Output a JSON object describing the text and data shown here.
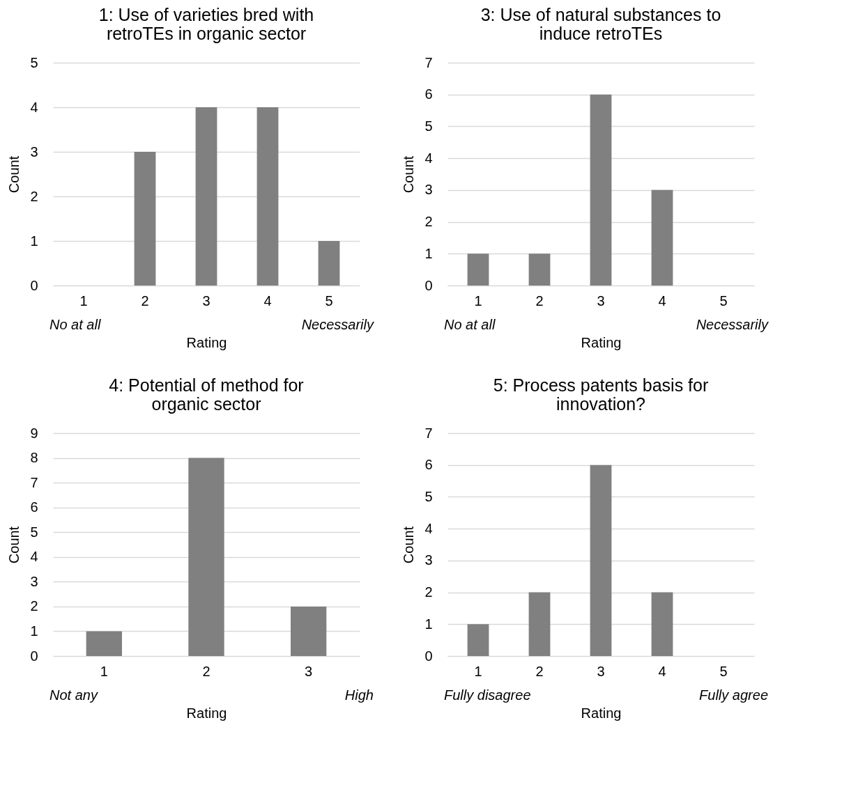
{
  "chart_data": [
    {
      "type": "bar",
      "title": "1: Use of varieties bred with\nretroTEs in organic sector",
      "xlabel": "Rating",
      "ylabel": "Count",
      "categories": [
        "1",
        "2",
        "3",
        "4",
        "5"
      ],
      "values": [
        0,
        3,
        4,
        4,
        1
      ],
      "color": "#808080",
      "ylim": [
        0,
        5
      ],
      "yticks": [
        0,
        1,
        2,
        3,
        4,
        5
      ],
      "grid": "y",
      "annotations": [
        "No at all",
        "Necessarily"
      ]
    },
    {
      "type": "bar",
      "title": "3: Use of natural substances to\ninduce retroTEs",
      "xlabel": "Rating",
      "ylabel": "Count",
      "categories": [
        "1",
        "2",
        "3",
        "4",
        "5"
      ],
      "values": [
        1,
        1,
        6,
        3,
        0
      ],
      "color": "#808080",
      "ylim": [
        0,
        7
      ],
      "yticks": [
        0,
        1,
        2,
        3,
        4,
        5,
        6,
        7
      ],
      "grid": "y",
      "annotations": [
        "No at all",
        "Necessarily"
      ]
    },
    {
      "type": "bar",
      "title": "4: Potential of method for\norganic sector",
      "xlabel": "Rating",
      "ylabel": "Count",
      "categories": [
        "1",
        "2",
        "3"
      ],
      "values": [
        1,
        8,
        2
      ],
      "color": "#808080",
      "ylim": [
        0,
        9
      ],
      "yticks": [
        0,
        1,
        2,
        3,
        4,
        5,
        6,
        7,
        8,
        9
      ],
      "grid": "y",
      "annotations": [
        "Not any",
        "High"
      ]
    },
    {
      "type": "bar",
      "title": "5: Process patents basis for\ninnovation?",
      "xlabel": "Rating",
      "ylabel": "Count",
      "categories": [
        "1",
        "2",
        "3",
        "4",
        "5"
      ],
      "values": [
        1,
        2,
        6,
        2,
        0
      ],
      "color": "#808080",
      "ylim": [
        0,
        7
      ],
      "yticks": [
        0,
        1,
        2,
        3,
        4,
        5,
        6,
        7
      ],
      "grid": "y",
      "annotations": [
        "Fully disagree",
        "Fully agree"
      ]
    }
  ]
}
